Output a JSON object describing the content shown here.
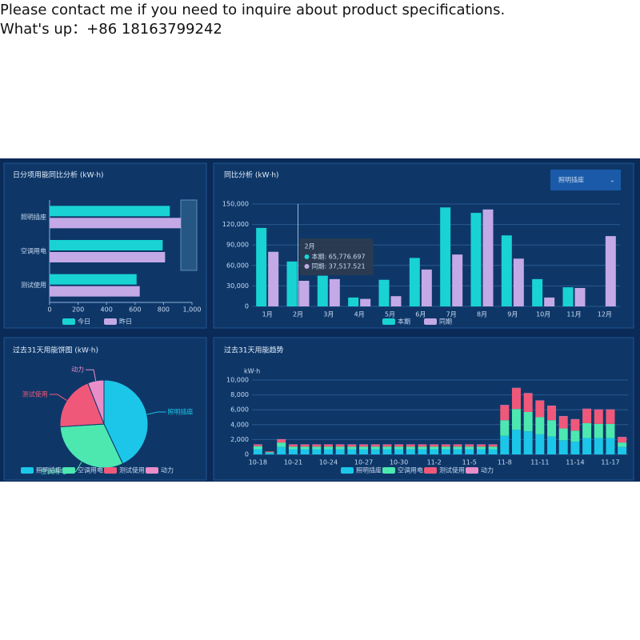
{
  "header": {
    "lines": [
      "Please contact me if you need to inquire about product specifications.",
      "What's up：+86 18163799242"
    ]
  },
  "chart_data": [
    {
      "type": "hbar",
      "title": "日分项用能同比分析 (kW·h)",
      "categories": [
        "照明插座",
        "空调用电",
        "测试使用"
      ],
      "series": [
        {
          "name": "今日",
          "color": "#19d3d3",
          "values": [
            844,
            794,
            611
          ]
        },
        {
          "name": "昨日",
          "color": "#c3a9e6",
          "values": [
            922,
            811,
            633
          ]
        }
      ],
      "xlim": [
        0,
        1000
      ],
      "xticks": [
        0,
        200,
        400,
        600,
        800,
        {
          "value": 1000,
          "label": "1,000"
        }
      ]
    },
    {
      "type": "bar",
      "title": "同比分析 (kW·h)",
      "selector": "照明插座",
      "categories": [
        "1月",
        "2月",
        "3月",
        "4月",
        "5月",
        "6月",
        "7月",
        "8月",
        "9月",
        "10月",
        "11月",
        "12月"
      ],
      "series": [
        {
          "name": "本期",
          "color": "#19d3d3",
          "values": [
            115000,
            65776.697,
            45000,
            13000,
            39000,
            71000,
            145000,
            137000,
            104000,
            40000,
            28000,
            null
          ]
        },
        {
          "name": "同期",
          "color": "#c3a9e6",
          "values": [
            80000,
            37517.521,
            40000,
            11000,
            15000,
            54000,
            76000,
            142000,
            70000,
            13000,
            27000,
            103000
          ]
        }
      ],
      "ylim": [
        0,
        150000
      ],
      "yticks": [
        0,
        {
          "value": 30000,
          "label": "30,000"
        },
        {
          "value": 60000,
          "label": "60,000"
        },
        {
          "value": 90000,
          "label": "90,000"
        },
        {
          "value": 120000,
          "label": "120,000"
        },
        {
          "value": 150000,
          "label": "150,000"
        }
      ],
      "grid": true,
      "tooltip": {
        "title": "2月",
        "lines": [
          "本期: 65,776.697",
          "同期: 37,517.521"
        ]
      }
    },
    {
      "type": "pie",
      "title": "过去31天用能饼图 (kW·h)",
      "categories": [
        "照明插座",
        "空调用电",
        "测试使用",
        "动力"
      ],
      "values": [
        43,
        31,
        20,
        6
      ],
      "colors": [
        "#1cc6e8",
        "#4de8b0",
        "#f0587a",
        "#e98ec8"
      ]
    },
    {
      "type": "stacked_bar",
      "title": "过去31天用能趋势",
      "y_label": "kW·h",
      "categories": [
        "10-18",
        null,
        null,
        "10-21",
        null,
        null,
        "10-24",
        null,
        null,
        "10-27",
        null,
        null,
        "10-30",
        null,
        null,
        "11-2",
        null,
        null,
        "11-5",
        null,
        null,
        "11-8",
        null,
        null,
        "11-11",
        null,
        null,
        "11-14",
        null,
        null,
        "11-17",
        null
      ],
      "series": [
        {
          "name": "照明插座",
          "color": "#1cc6e8",
          "values": [
            700,
            200,
            1000,
            700,
            700,
            700,
            700,
            700,
            700,
            700,
            700,
            700,
            700,
            700,
            700,
            700,
            700,
            700,
            700,
            700,
            700,
            2500,
            3300,
            3100,
            2700,
            2400,
            1900,
            1700,
            2200,
            2200,
            2200,
            1000
          ]
        },
        {
          "name": "空调用电",
          "color": "#4de8b0",
          "values": [
            400,
            100,
            600,
            350,
            350,
            350,
            350,
            350,
            350,
            350,
            350,
            350,
            350,
            350,
            350,
            350,
            350,
            350,
            350,
            350,
            350,
            2100,
            2800,
            2600,
            2300,
            2200,
            1600,
            1500,
            2000,
            1900,
            1900,
            600
          ]
        },
        {
          "name": "测试使用",
          "color": "#f0587a",
          "values": [
            200,
            100,
            400,
            250,
            250,
            250,
            250,
            250,
            250,
            250,
            250,
            250,
            250,
            250,
            250,
            250,
            250,
            250,
            250,
            250,
            250,
            2000,
            2800,
            2500,
            2200,
            1900,
            1600,
            1500,
            1900,
            1900,
            1900,
            700
          ]
        },
        {
          "name": "动力",
          "color": "#e98ec8",
          "values": [
            50,
            0,
            50,
            50,
            50,
            50,
            50,
            50,
            50,
            50,
            50,
            50,
            50,
            50,
            50,
            50,
            50,
            50,
            50,
            50,
            50,
            50,
            50,
            50,
            50,
            50,
            50,
            50,
            50,
            50,
            50,
            50
          ]
        }
      ],
      "ylim": [
        0,
        10000
      ],
      "yticks": [
        0,
        {
          "value": 2000,
          "label": "2,000"
        },
        {
          "value": 4000,
          "label": "4,000"
        },
        {
          "value": 6000,
          "label": "6,000"
        },
        {
          "value": 8000,
          "label": "8,000"
        },
        {
          "value": 10000,
          "label": "10,000"
        }
      ],
      "grid": true
    }
  ]
}
